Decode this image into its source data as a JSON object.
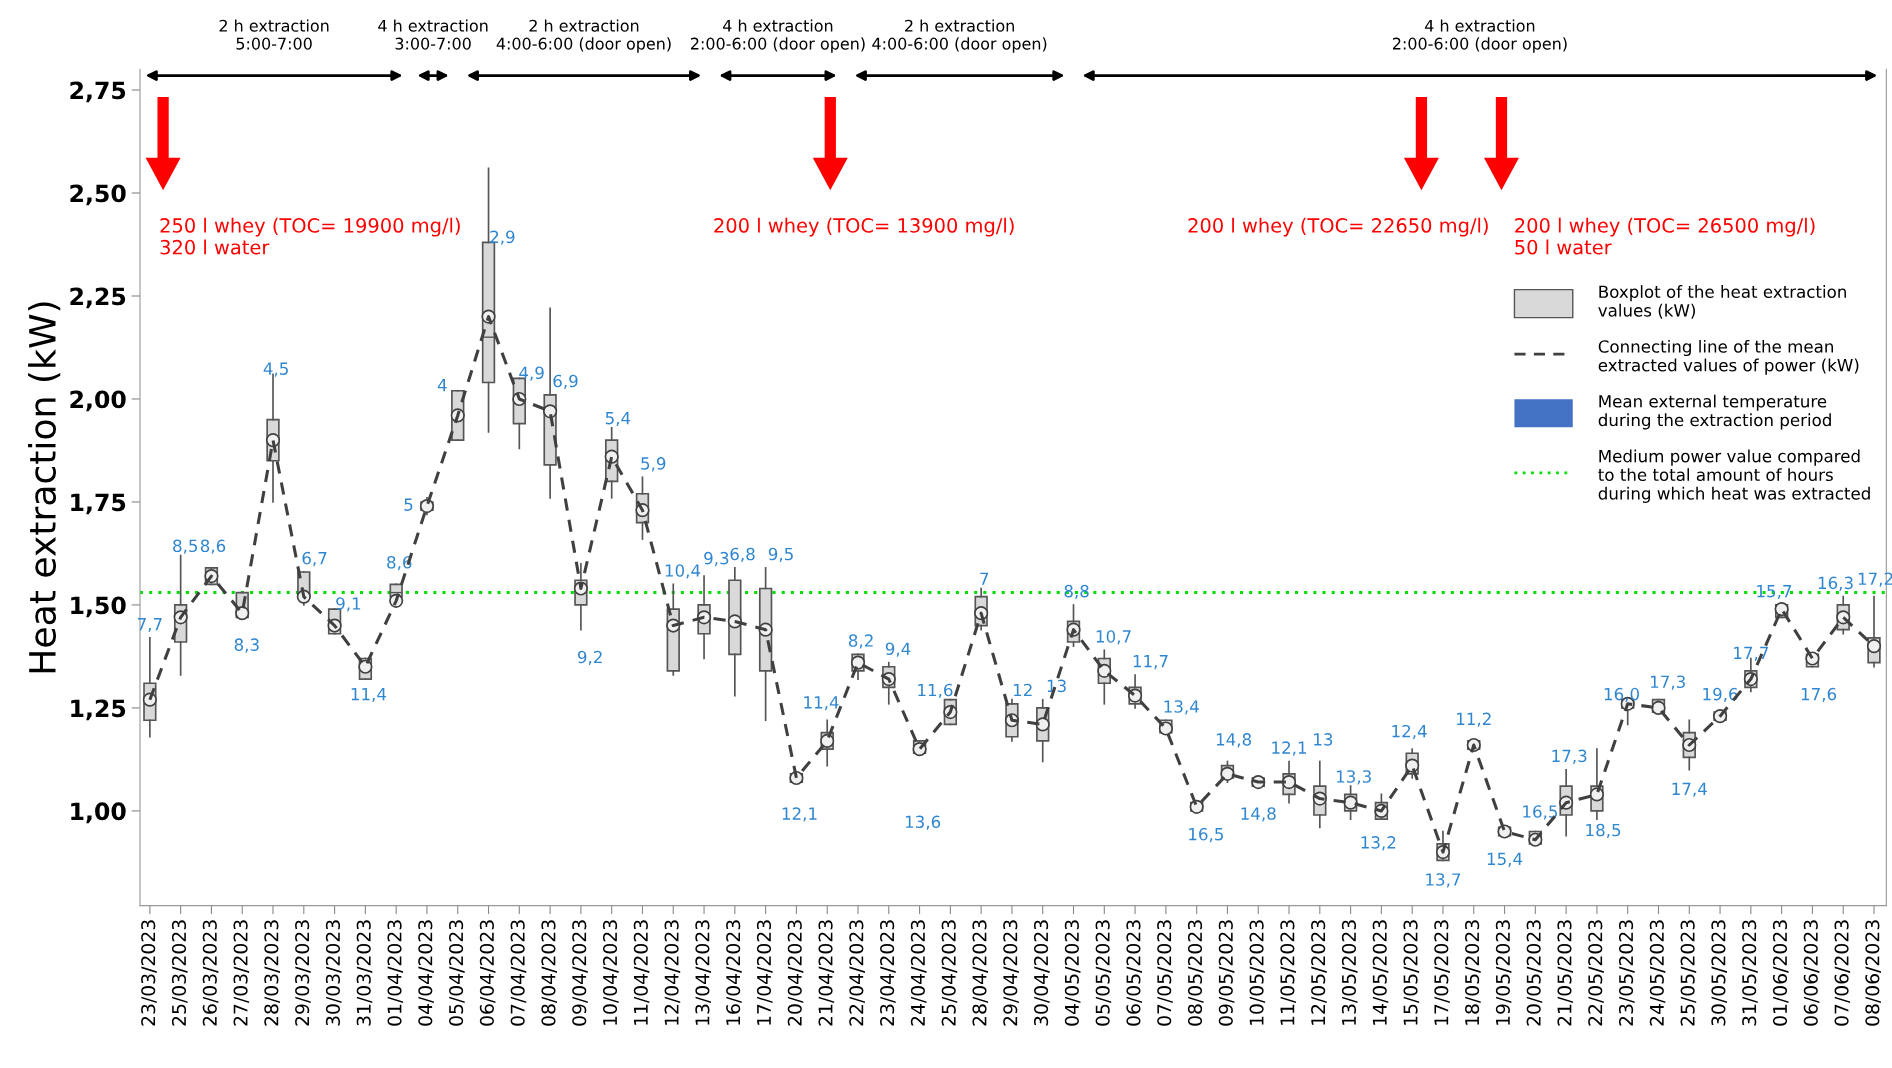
{
  "chart_data": {
    "type": "box",
    "ylabel": "Heat extraction (kW)",
    "categories": [
      "23/03/2023",
      "25/03/2023",
      "26/03/2023",
      "27/03/2023",
      "28/03/2023",
      "29/03/2023",
      "30/03/2023",
      "31/03/2023",
      "01/04/2023",
      "04/04/2023",
      "05/04/2023",
      "06/04/2023",
      "07/04/2023",
      "08/04/2023",
      "09/04/2023",
      "10/04/2023",
      "11/04/2023",
      "12/04/2023",
      "13/04/2023",
      "16/04/2023",
      "17/04/2023",
      "20/04/2023",
      "21/04/2023",
      "22/04/2023",
      "23/04/2023",
      "24/04/2023",
      "25/04/2023",
      "28/04/2023",
      "29/04/2023",
      "30/04/2023",
      "04/05/2023",
      "05/05/2023",
      "06/05/2023",
      "07/05/2023",
      "08/05/2023",
      "09/05/2023",
      "10/05/2023",
      "11/05/2023",
      "12/05/2023",
      "13/05/2023",
      "14/05/2023",
      "15/05/2023",
      "17/05/2023",
      "18/05/2023",
      "19/05/2023",
      "20/05/2023",
      "21/05/2023",
      "22/05/2023",
      "23/05/2023",
      "24/05/2023",
      "25/05/2023",
      "30/05/2023",
      "31/05/2023",
      "01/06/2023",
      "06/06/2023",
      "07/06/2023",
      "08/06/2023"
    ],
    "series": [
      {
        "name": "Boxplot of the heat extraction\nvalues (kW)",
        "color": "#d9d9d9",
        "boxes": [
          {
            "low": 1.18,
            "q1": 1.22,
            "median": 1.27,
            "q3": 1.31,
            "high": 1.42,
            "mean": 1.27
          },
          {
            "low": 1.33,
            "q1": 1.41,
            "median": 1.47,
            "q3": 1.5,
            "high": 1.62,
            "mean": 1.47
          },
          {
            "low": 1.55,
            "q1": 1.55,
            "median": 1.57,
            "q3": 1.59,
            "high": 1.59,
            "mean": 1.57
          },
          {
            "low": 1.47,
            "q1": 1.47,
            "median": 1.48,
            "q3": 1.53,
            "high": 1.53,
            "mean": 1.48
          },
          {
            "low": 1.75,
            "q1": 1.85,
            "median": 1.9,
            "q3": 1.95,
            "high": 2.06,
            "mean": 1.9
          },
          {
            "low": 1.5,
            "q1": 1.52,
            "median": 1.53,
            "q3": 1.58,
            "high": 1.58,
            "mean": 1.52
          },
          {
            "low": 1.43,
            "q1": 1.43,
            "median": 1.45,
            "q3": 1.49,
            "high": 1.49,
            "mean": 1.45
          },
          {
            "low": 1.32,
            "q1": 1.32,
            "median": 1.35,
            "q3": 1.37,
            "high": 1.37,
            "mean": 1.35
          },
          {
            "low": 1.5,
            "q1": 1.52,
            "median": 1.53,
            "q3": 1.55,
            "high": 1.55,
            "mean": 1.51
          },
          {
            "low": 1.72,
            "q1": 1.73,
            "median": 1.74,
            "q3": 1.75,
            "high": 1.76,
            "mean": 1.74
          },
          {
            "low": 1.9,
            "q1": 1.9,
            "median": 1.96,
            "q3": 2.02,
            "high": 2.02,
            "mean": 1.96
          },
          {
            "low": 1.92,
            "q1": 2.04,
            "median": 2.15,
            "q3": 2.38,
            "high": 2.56,
            "mean": 2.2
          },
          {
            "low": 1.88,
            "q1": 1.94,
            "median": 2.0,
            "q3": 2.05,
            "high": 2.05,
            "mean": 2.0
          },
          {
            "low": 1.76,
            "q1": 1.84,
            "median": 1.97,
            "q3": 2.01,
            "high": 2.22,
            "mean": 1.97
          },
          {
            "low": 1.44,
            "q1": 1.5,
            "median": 1.54,
            "q3": 1.56,
            "high": 1.6,
            "mean": 1.54
          },
          {
            "low": 1.76,
            "q1": 1.8,
            "median": 1.86,
            "q3": 1.9,
            "high": 1.93,
            "mean": 1.86
          },
          {
            "low": 1.66,
            "q1": 1.7,
            "median": 1.73,
            "q3": 1.77,
            "high": 1.81,
            "mean": 1.73
          },
          {
            "low": 1.33,
            "q1": 1.34,
            "median": 1.45,
            "q3": 1.49,
            "high": 1.55,
            "mean": 1.45
          },
          {
            "low": 1.37,
            "q1": 1.43,
            "median": 1.47,
            "q3": 1.5,
            "high": 1.57,
            "mean": 1.47
          },
          {
            "low": 1.28,
            "q1": 1.38,
            "median": 1.46,
            "q3": 1.56,
            "high": 1.59,
            "mean": 1.46
          },
          {
            "low": 1.22,
            "q1": 1.34,
            "median": 1.44,
            "q3": 1.54,
            "high": 1.59,
            "mean": 1.44
          },
          {
            "low": 1.07,
            "q1": 1.07,
            "median": 1.08,
            "q3": 1.09,
            "high": 1.09,
            "mean": 1.08
          },
          {
            "low": 1.11,
            "q1": 1.15,
            "median": 1.17,
            "q3": 1.19,
            "high": 1.22,
            "mean": 1.17
          },
          {
            "low": 1.32,
            "q1": 1.34,
            "median": 1.36,
            "q3": 1.38,
            "high": 1.38,
            "mean": 1.36
          },
          {
            "low": 1.26,
            "q1": 1.3,
            "median": 1.32,
            "q3": 1.35,
            "high": 1.36,
            "mean": 1.32
          },
          {
            "low": 1.14,
            "q1": 1.14,
            "median": 1.15,
            "q3": 1.17,
            "high": 1.17,
            "mean": 1.15
          },
          {
            "low": 1.21,
            "q1": 1.21,
            "median": 1.24,
            "q3": 1.27,
            "high": 1.27,
            "mean": 1.24
          },
          {
            "low": 1.44,
            "q1": 1.45,
            "median": 1.48,
            "q3": 1.52,
            "high": 1.54,
            "mean": 1.48
          },
          {
            "low": 1.17,
            "q1": 1.18,
            "median": 1.22,
            "q3": 1.26,
            "high": 1.27,
            "mean": 1.22
          },
          {
            "low": 1.12,
            "q1": 1.17,
            "median": 1.21,
            "q3": 1.25,
            "high": 1.27,
            "mean": 1.21
          },
          {
            "low": 1.4,
            "q1": 1.41,
            "median": 1.44,
            "q3": 1.46,
            "high": 1.5,
            "mean": 1.44
          },
          {
            "low": 1.26,
            "q1": 1.31,
            "median": 1.34,
            "q3": 1.37,
            "high": 1.39,
            "mean": 1.34
          },
          {
            "low": 1.25,
            "q1": 1.26,
            "median": 1.28,
            "q3": 1.3,
            "high": 1.33,
            "mean": 1.28
          },
          {
            "low": 1.19,
            "q1": 1.19,
            "median": 1.2,
            "q3": 1.22,
            "high": 1.22,
            "mean": 1.2
          },
          {
            "low": 1.0,
            "q1": 1.0,
            "median": 1.01,
            "q3": 1.02,
            "high": 1.02,
            "mean": 1.01
          },
          {
            "low": 1.07,
            "q1": 1.08,
            "median": 1.09,
            "q3": 1.11,
            "high": 1.12,
            "mean": 1.09
          },
          {
            "low": 1.06,
            "q1": 1.06,
            "median": 1.07,
            "q3": 1.08,
            "high": 1.08,
            "mean": 1.07
          },
          {
            "low": 1.02,
            "q1": 1.04,
            "median": 1.07,
            "q3": 1.09,
            "high": 1.12,
            "mean": 1.07
          },
          {
            "low": 0.96,
            "q1": 0.99,
            "median": 1.03,
            "q3": 1.06,
            "high": 1.12,
            "mean": 1.03
          },
          {
            "low": 0.98,
            "q1": 1.0,
            "median": 1.02,
            "q3": 1.04,
            "high": 1.06,
            "mean": 1.02
          },
          {
            "low": 0.98,
            "q1": 0.98,
            "median": 1.0,
            "q3": 1.02,
            "high": 1.04,
            "mean": 1.0
          },
          {
            "low": 1.08,
            "q1": 1.09,
            "median": 1.11,
            "q3": 1.14,
            "high": 1.15,
            "mean": 1.11
          },
          {
            "low": 0.88,
            "q1": 0.88,
            "median": 0.9,
            "q3": 0.92,
            "high": 0.95,
            "mean": 0.9
          },
          {
            "low": 1.15,
            "q1": 1.15,
            "median": 1.16,
            "q3": 1.17,
            "high": 1.17,
            "mean": 1.16
          },
          {
            "low": 0.94,
            "q1": 0.94,
            "median": 0.95,
            "q3": 0.96,
            "high": 0.96,
            "mean": 0.95
          },
          {
            "low": 0.92,
            "q1": 0.92,
            "median": 0.93,
            "q3": 0.95,
            "high": 0.95,
            "mean": 0.93
          },
          {
            "low": 0.94,
            "q1": 0.99,
            "median": 1.02,
            "q3": 1.06,
            "high": 1.1,
            "mean": 1.02
          },
          {
            "low": 0.98,
            "q1": 1.0,
            "median": 1.04,
            "q3": 1.06,
            "high": 1.15,
            "mean": 1.04
          },
          {
            "low": 1.21,
            "q1": 1.25,
            "median": 1.26,
            "q3": 1.27,
            "high": 1.27,
            "mean": 1.26
          },
          {
            "low": 1.24,
            "q1": 1.24,
            "median": 1.25,
            "q3": 1.27,
            "high": 1.27,
            "mean": 1.25
          },
          {
            "low": 1.1,
            "q1": 1.13,
            "median": 1.16,
            "q3": 1.19,
            "high": 1.22,
            "mean": 1.16
          },
          {
            "low": 1.22,
            "q1": 1.22,
            "median": 1.23,
            "q3": 1.24,
            "high": 1.24,
            "mean": 1.23
          },
          {
            "low": 1.29,
            "q1": 1.3,
            "median": 1.32,
            "q3": 1.34,
            "high": 1.37,
            "mean": 1.32
          },
          {
            "low": 1.47,
            "q1": 1.47,
            "median": 1.49,
            "q3": 1.5,
            "high": 1.5,
            "mean": 1.49
          },
          {
            "low": 1.35,
            "q1": 1.35,
            "median": 1.37,
            "q3": 1.38,
            "high": 1.38,
            "mean": 1.37
          },
          {
            "low": 1.43,
            "q1": 1.44,
            "median": 1.47,
            "q3": 1.5,
            "high": 1.52,
            "mean": 1.47
          },
          {
            "low": 1.35,
            "q1": 1.36,
            "median": 1.4,
            "q3": 1.42,
            "high": 1.52,
            "mean": 1.4
          }
        ]
      },
      {
        "name": "Connecting line of the mean\nextracted values of power (kW)",
        "type": "line",
        "color": "#404040",
        "line_style": "dashed",
        "values": [
          1.27,
          1.47,
          1.57,
          1.48,
          1.9,
          1.52,
          1.45,
          1.35,
          1.51,
          1.74,
          1.96,
          2.2,
          2.0,
          1.97,
          1.54,
          1.86,
          1.73,
          1.45,
          1.47,
          1.46,
          1.44,
          1.08,
          1.17,
          1.36,
          1.32,
          1.15,
          1.24,
          1.48,
          1.22,
          1.21,
          1.44,
          1.34,
          1.28,
          1.2,
          1.01,
          1.09,
          1.07,
          1.07,
          1.03,
          1.02,
          1.0,
          1.11,
          0.9,
          1.16,
          0.95,
          0.93,
          1.02,
          1.04,
          1.26,
          1.25,
          1.16,
          1.23,
          1.32,
          1.49,
          1.37,
          1.47,
          1.4
        ]
      },
      {
        "name": "Mean external temperature\nduring the extraction period",
        "type": "bar",
        "color": "#4472c4",
        "values": [
          null,
          null,
          null,
          null,
          null,
          null,
          null,
          null,
          null,
          null,
          null,
          null,
          null,
          null,
          null,
          null,
          null,
          null,
          null,
          null,
          null,
          null,
          null,
          null,
          null,
          null,
          null,
          null,
          null,
          null,
          null,
          null,
          null,
          null,
          null,
          null,
          null,
          null,
          null,
          null,
          null,
          null,
          null,
          null,
          null,
          null,
          null,
          null,
          null,
          null,
          null,
          null,
          null,
          null,
          null,
          null,
          null
        ]
      }
    ],
    "ref_lines": [
      {
        "axis": "y",
        "value": 1.53,
        "label": "Medium power value compared\nto the total amount of hours\nduring which heat was extracted",
        "color": "#00dd00",
        "line_style": "dotted"
      }
    ],
    "ylim": [
      0.77,
      2.8
    ],
    "yticks": [
      {
        "value": 1.0,
        "label": "1,00"
      },
      {
        "value": 1.25,
        "label": "1,25"
      },
      {
        "value": 1.5,
        "label": "1,50"
      },
      {
        "value": 1.75,
        "label": "1,75"
      },
      {
        "value": 2.0,
        "label": "2,00"
      },
      {
        "value": 2.25,
        "label": "2,25"
      },
      {
        "value": 2.5,
        "label": "2,50"
      },
      {
        "value": 2.75,
        "label": "2,75"
      }
    ],
    "grid": false,
    "legend": "upper right",
    "annotations": [
      "2 h extraction\n5:00-7:00",
      "4 h extraction\n3:00-7:00",
      "2 h extraction\n4:00-6:00 (door open)",
      "4 h extraction\n2:00-6:00 (door open)",
      "2 h extraction\n4:00-6:00 (door open)",
      "4 h extraction\n2:00-6:00 (door open)",
      "250 l whey (TOC= 19900 mg/l)\n320 l water",
      "200 l whey (TOC= 13900 mg/l)",
      "200 l whey (TOC= 22650 mg/l)",
      "200 l whey (TOC= 26500 mg/l)\n50 l water",
      "7,7",
      "8,5",
      "8,6",
      "8,3",
      "4,5",
      "6,7",
      "9,1",
      "11,4",
      "8,6",
      "5",
      "4",
      "2,9",
      "4,9",
      "6,9",
      "9,2",
      "5,4",
      "5,9",
      "10,4",
      "9,3",
      "6,8",
      "9,5",
      "12,1",
      "11,4",
      "8,2",
      "9,4",
      "13,6",
      "11,6",
      "7",
      "12",
      "13",
      "8,8",
      "10,7",
      "11,7",
      "13,4",
      "16,5",
      "14,8",
      "14,8",
      "12,1",
      "13",
      "13,3",
      "13,2",
      "12,4",
      "13,7",
      "11,2",
      "15,4",
      "16,5",
      "17,3",
      "18,5",
      "16,0",
      "17,3",
      "17,4",
      "19,6",
      "17,7",
      "15,7",
      "17,6",
      "16,3",
      "17,2"
    ]
  }
}
